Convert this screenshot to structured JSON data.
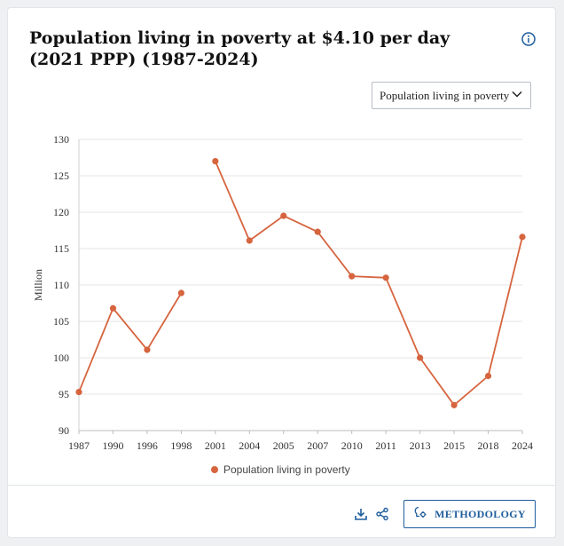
{
  "title": "Population living in poverty at $4.10 per day (2021 PPP) (1987-2024)",
  "selector": {
    "value": "Population living in poverty"
  },
  "buttons": {
    "methodology": "METHODOLOGY"
  },
  "icons": {
    "info": "info-icon",
    "select": "chevron-down-icon",
    "download": "download-icon",
    "share": "share-icon",
    "methodology": "gear-icon"
  },
  "colors": {
    "series": "#d6643e",
    "accent": "#1e5c9c"
  },
  "chart_data": {
    "type": "line",
    "title": "Population living in poverty at $4.10 per day (2021 PPP) (1987-2024)",
    "xlabel": "",
    "ylabel": "Million",
    "ylim": [
      90,
      130
    ],
    "yticks": [
      90,
      95,
      100,
      105,
      110,
      115,
      120,
      125,
      130
    ],
    "categories": [
      "1987",
      "1990",
      "1996",
      "1998",
      "2001",
      "2004",
      "2005",
      "2007",
      "2010",
      "2011",
      "2013",
      "2015",
      "2018",
      "2024"
    ],
    "series": [
      {
        "name": "Population living in poverty",
        "values": [
          95.3,
          106.8,
          101.1,
          108.9,
          127.0,
          116.1,
          119.5,
          117.3,
          111.2,
          111.0,
          100.0,
          93.5,
          97.5,
          116.6
        ],
        "segments": [
          [
            0,
            3
          ],
          [
            4,
            13
          ]
        ]
      }
    ],
    "legend": "bottom-center",
    "grid": true
  }
}
